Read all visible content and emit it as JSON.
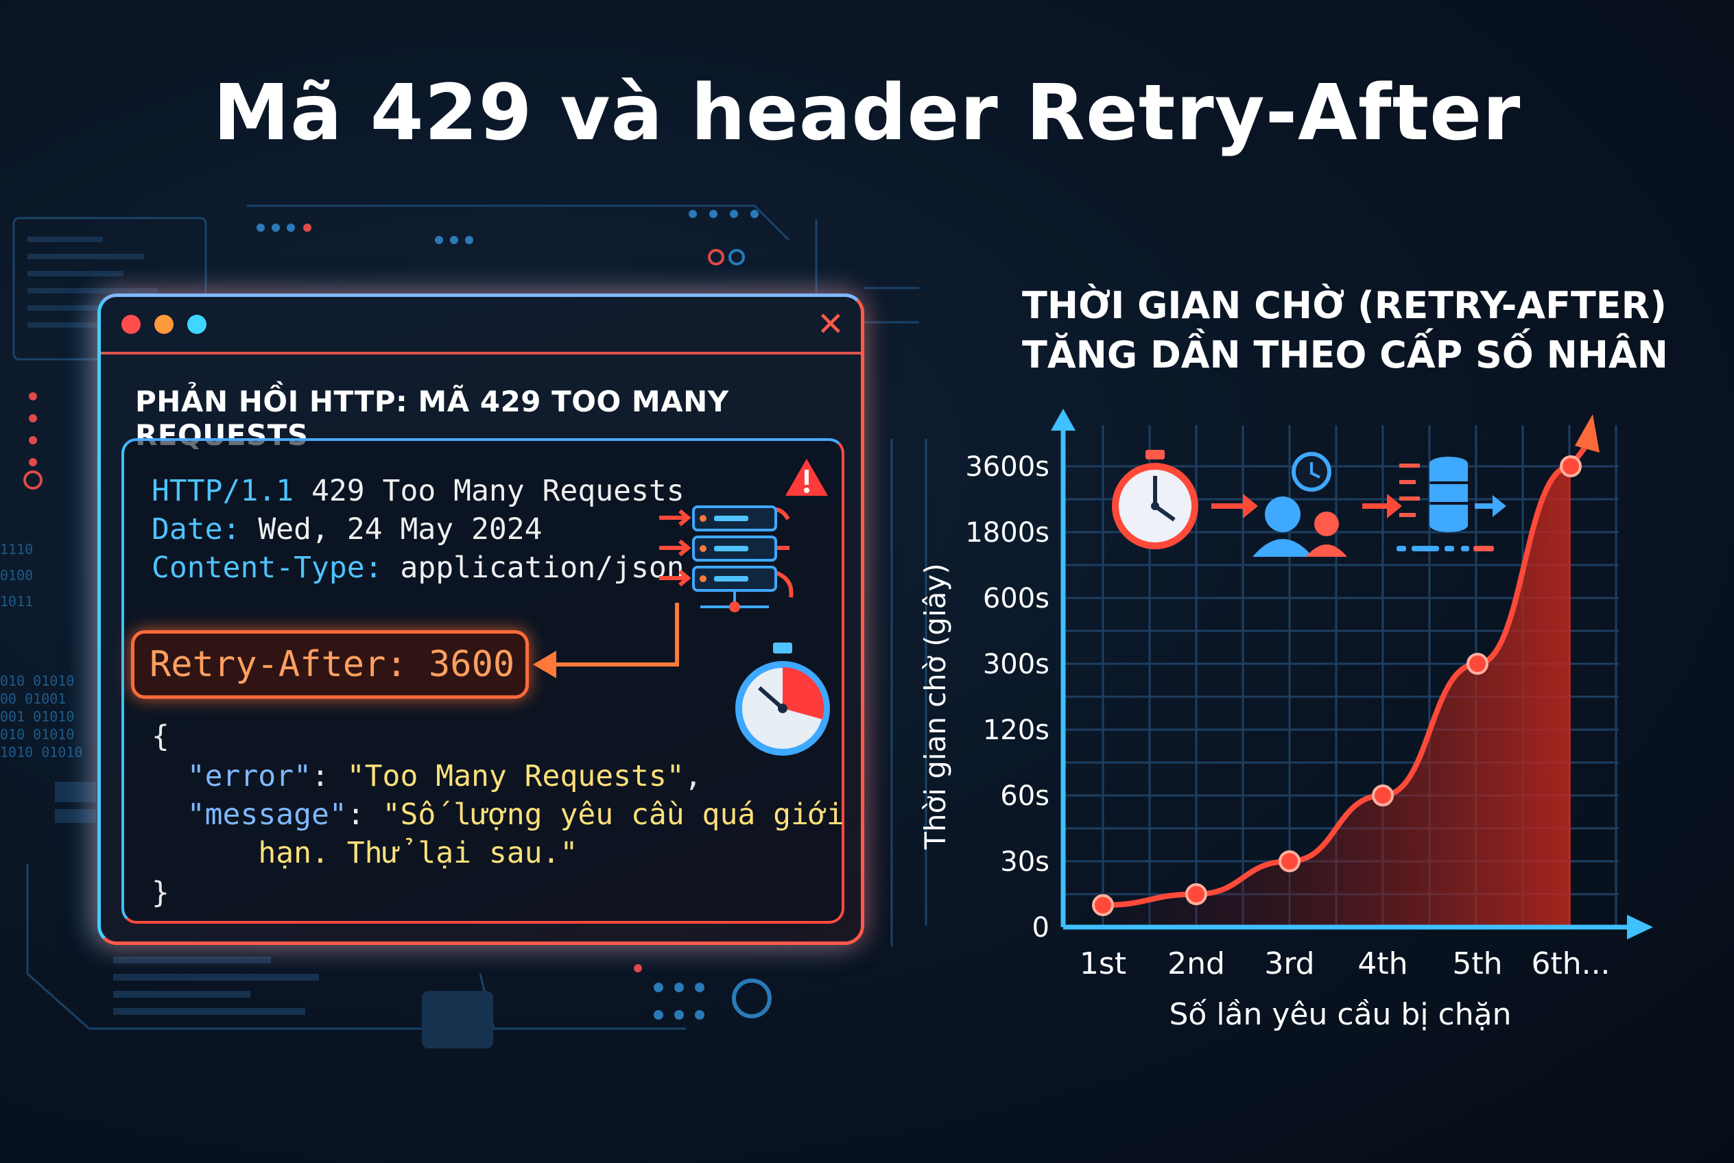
{
  "title": "Mã 429 và header Retry-After",
  "window": {
    "heading": "PHẢN HỒI HTTP: MÃ 429 TOO MANY REQUESTS",
    "close_symbol": "✕",
    "headers": [
      {
        "key": "HTTP/1.1",
        "value": " 429 Too Many Requests"
      },
      {
        "key": "Date:",
        "value": " Wed, 24 May 2024"
      },
      {
        "key": "Content-Type:",
        "value": " application/json"
      }
    ],
    "retry_after": "Retry-After: 3600",
    "json_open": "{",
    "json_close": "}",
    "error_key": "\"error\"",
    "error_value": "\"Too Many Requests\"",
    "message_key": "\"message\"",
    "message_value_line1": "\"Số lượng yêu cầu quá giới",
    "message_value_line2": "hạn. Thử lại sau.\"",
    "icons": [
      "server-rack-icon",
      "warning-icon",
      "stopwatch-icon"
    ]
  },
  "chart_data": {
    "type": "line",
    "title_line1": "THỜI GIAN CHỜ (RETRY-AFTER)",
    "title_line2": "TĂNG DẦN THEO CẤP SỐ NHÂN",
    "xlabel": "Số lần yêu cầu bị chặn",
    "ylabel": "Thời gian chờ (giây)",
    "categories": [
      "1st",
      "2nd",
      "3rd",
      "4th",
      "5th",
      "6th..."
    ],
    "y_ticks": [
      "0",
      "30s",
      "60s",
      "120s",
      "300s",
      "600s",
      "1800s",
      "3600s"
    ],
    "series": [
      {
        "values": [
          10,
          15,
          30,
          60,
          300,
          3600
        ]
      }
    ],
    "grid": true,
    "colors": {
      "axis": "#3fc0ff",
      "line": "#ff4a3a",
      "fill": "#c0281e"
    },
    "icons": [
      "stopwatch-icon",
      "users-clock-icon",
      "database-icon"
    ]
  }
}
